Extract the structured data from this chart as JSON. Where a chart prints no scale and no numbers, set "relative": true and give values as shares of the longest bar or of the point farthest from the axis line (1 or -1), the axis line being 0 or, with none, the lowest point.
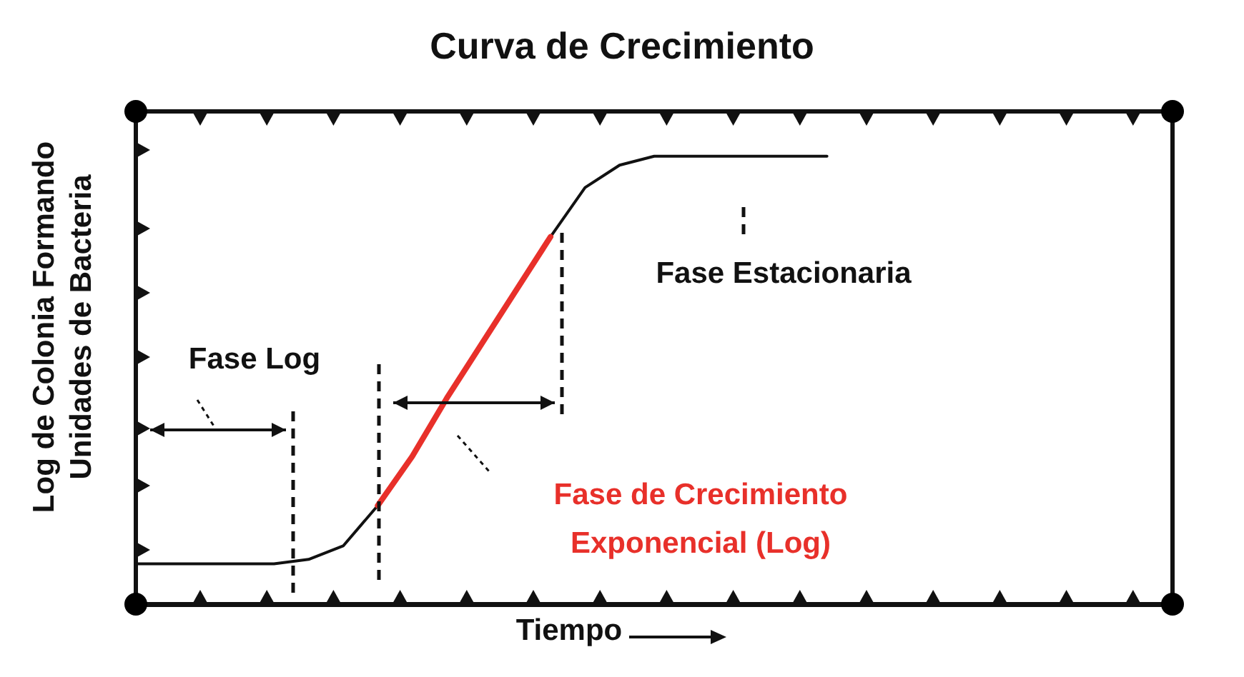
{
  "chart_data": {
    "type": "line",
    "title": "Curva de Crecimiento",
    "xlabel": "Tiempo",
    "ylabel": "Log de Colonia Formando Unidades de Bacteria",
    "relative": true,
    "grid": false,
    "marker": "none",
    "categories": [
      null,
      null,
      null,
      null,
      null,
      null,
      null,
      null,
      null,
      null,
      null,
      null,
      null,
      null,
      null,
      null,
      null,
      null,
      null,
      null,
      null,
      null,
      null,
      null,
      null,
      null,
      null,
      null,
      null,
      null,
      null
    ],
    "series": [
      {
        "color": "#111111",
        "values": [
          0.09,
          0.09,
          0.09,
          0.09,
          0.09,
          0.1,
          0.13,
          0.22,
          null,
          null,
          null,
          null,
          0.82,
          0.93,
          0.98,
          1,
          1,
          1,
          1,
          1,
          1,
          null,
          null,
          null,
          null,
          null,
          null,
          null,
          null,
          null,
          null
        ]
      },
      {
        "color": "#e8302a",
        "values": [
          null,
          null,
          null,
          null,
          null,
          null,
          null,
          0.22,
          0.33,
          0.46,
          0.58,
          0.7,
          0.82,
          null,
          null,
          null,
          null,
          null,
          null,
          null,
          null,
          null,
          null,
          null,
          null,
          null,
          null,
          null,
          null,
          null,
          null
        ]
      }
    ],
    "annotations": [
      "Fase Log",
      "Fase Estacionaria",
      "Fase de Crecimiento Exponencial (Log)"
    ]
  }
}
